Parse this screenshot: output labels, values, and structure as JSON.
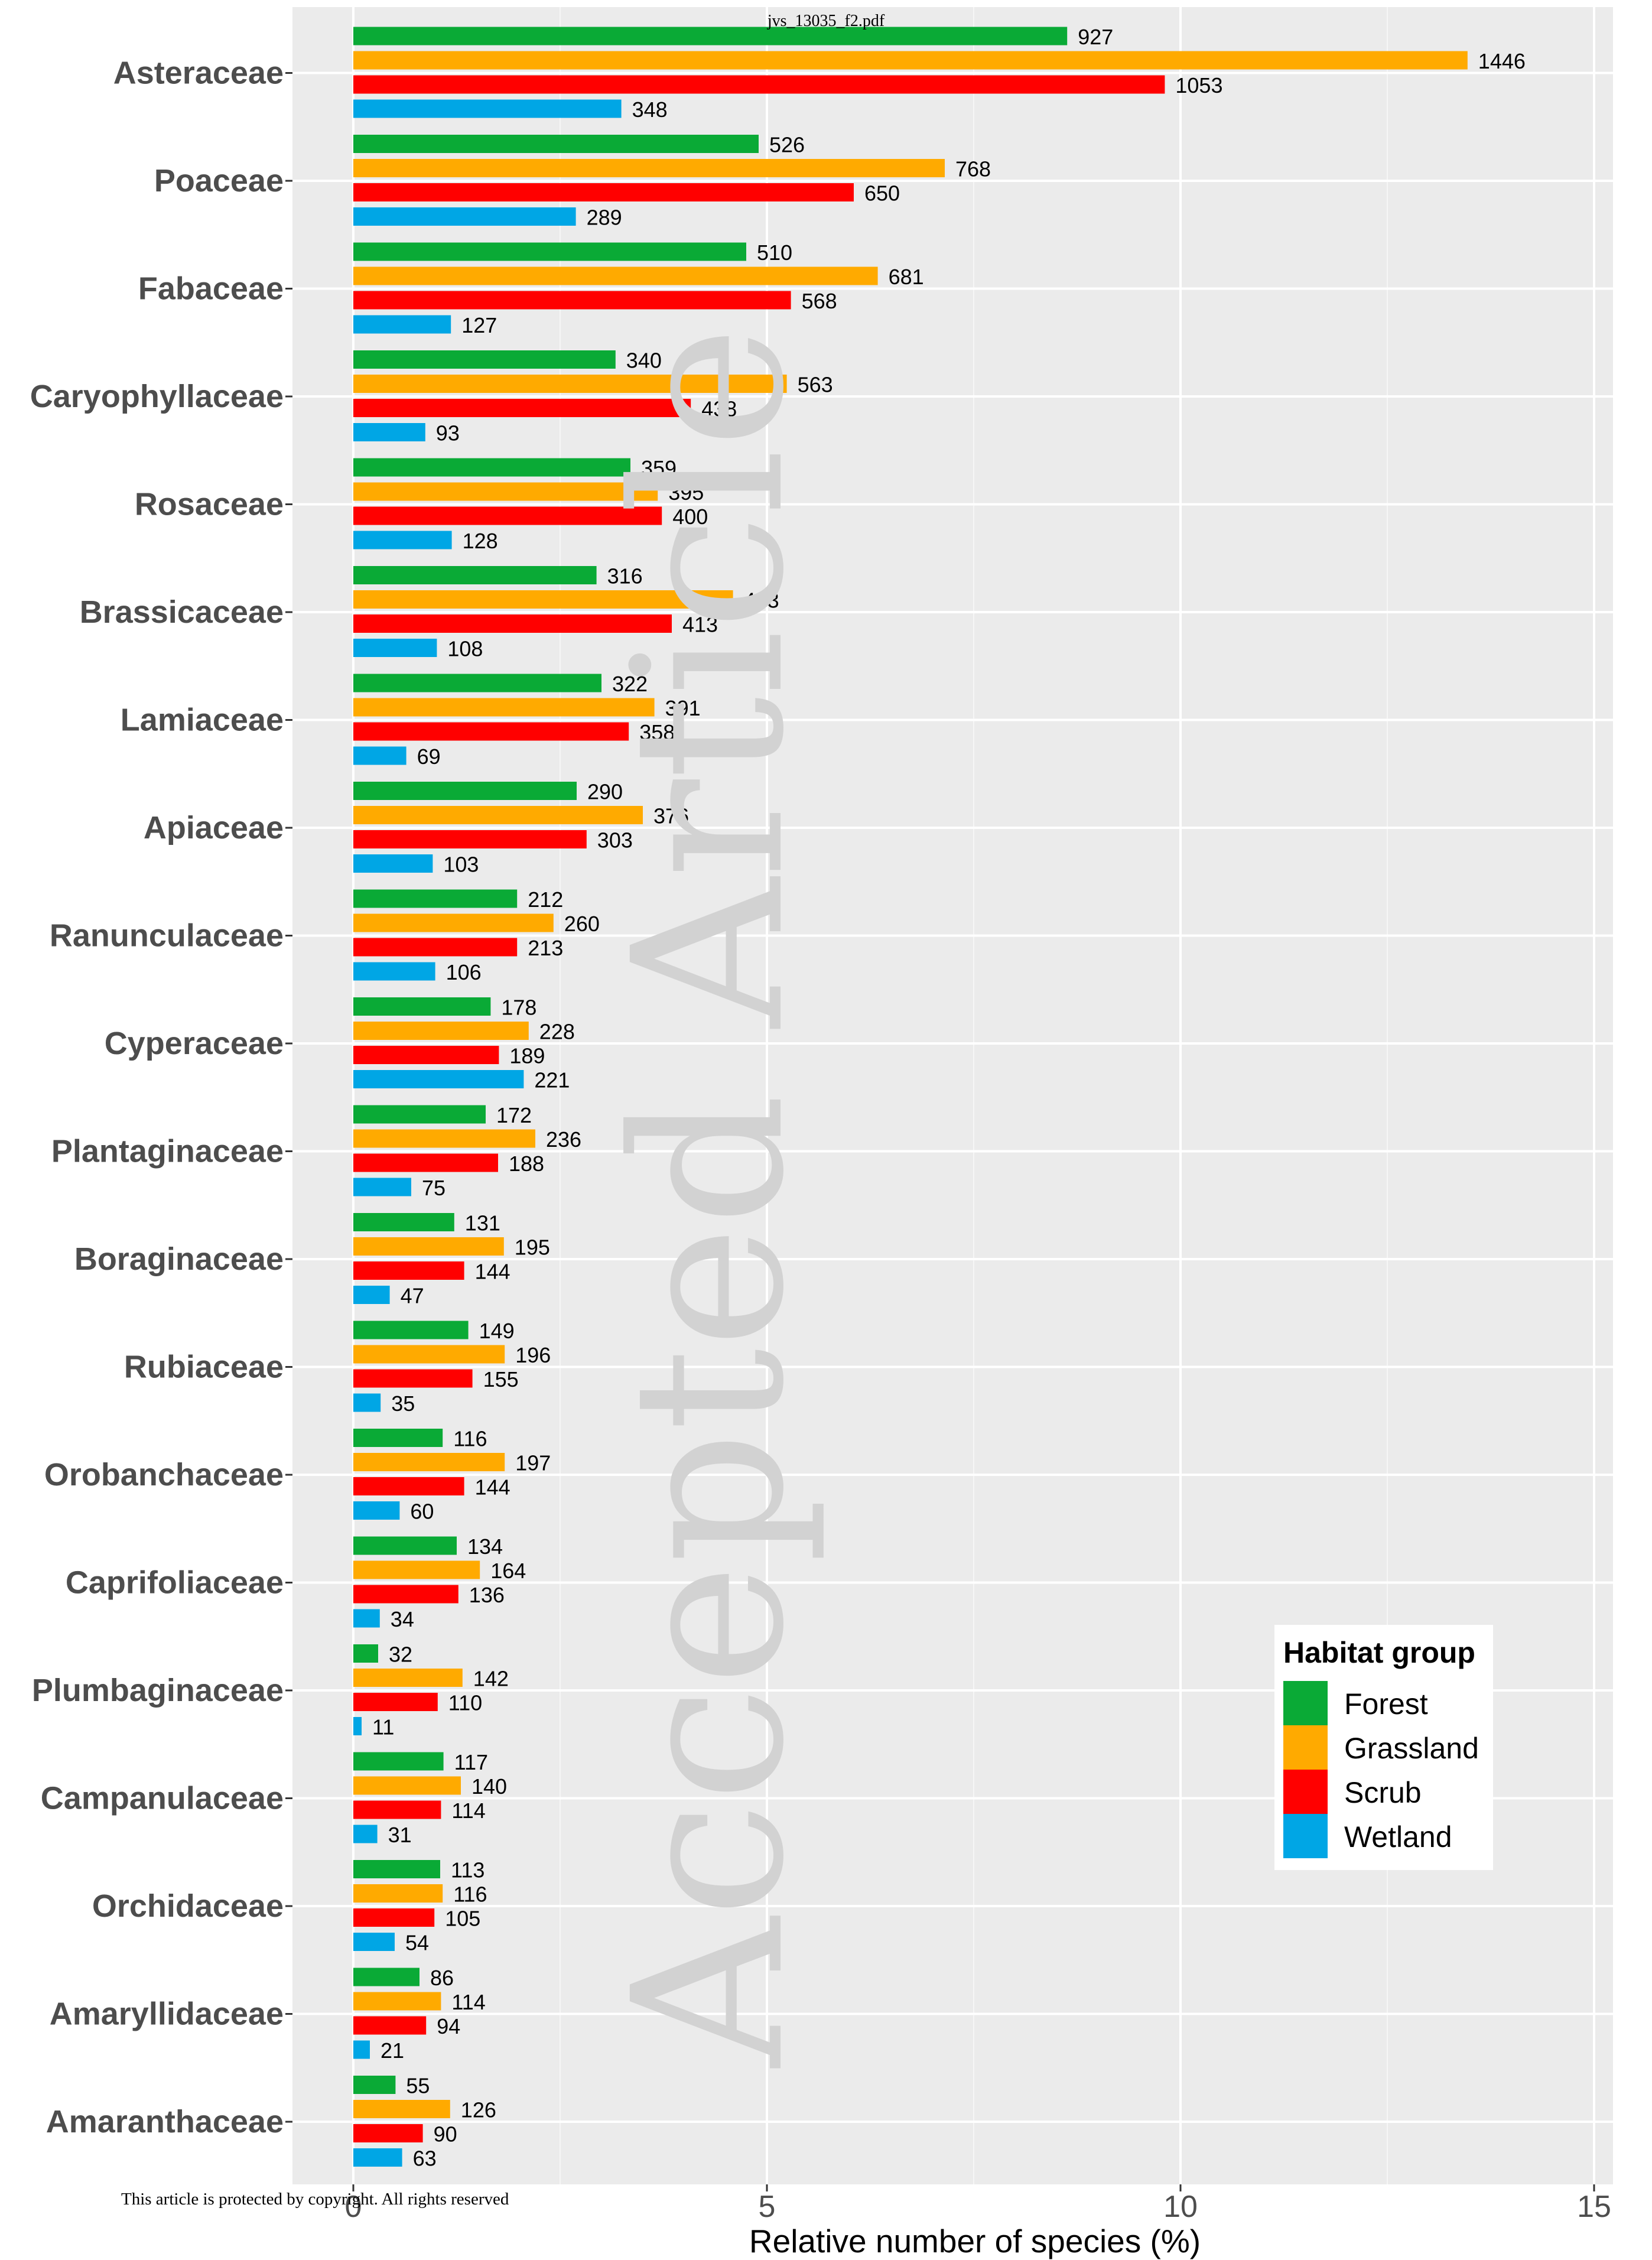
{
  "header": {
    "filename": "jvs_13035_f2.pdf"
  },
  "footer": {
    "notice": "This article is protected by copyright. All rights reserved"
  },
  "watermark": {
    "text": "Accepted Article"
  },
  "chart_data": {
    "type": "bar",
    "orientation": "horizontal",
    "xlabel": "Relative number of species (%)",
    "ylabel": "",
    "xlim": [
      0,
      15.5
    ],
    "xticks": [
      0,
      5,
      10,
      15
    ],
    "grid": true,
    "legend": {
      "title": "Habitat group",
      "placement": "right",
      "entries": [
        "Forest",
        "Grassland",
        "Scrub",
        "Wetland"
      ]
    },
    "colors": {
      "Forest": "#0aaa36",
      "Grassland": "#ffaa00",
      "Scrub": "#ff0000",
      "Wetland": "#00a6e5"
    },
    "categories": [
      "Asteraceae",
      "Poaceae",
      "Fabaceae",
      "Caryophyllaceae",
      "Rosaceae",
      "Brassicaceae",
      "Lamiaceae",
      "Apiaceae",
      "Ranunculaceae",
      "Cyperaceae",
      "Plantaginaceae",
      "Boraginaceae",
      "Rubiaceae",
      "Orobanchaceae",
      "Caprifoliaceae",
      "Plumbaginaceae",
      "Campanulaceae",
      "Orchidaceae",
      "Amaryllidaceae",
      "Amaranthaceae"
    ],
    "series": [
      {
        "name": "Forest",
        "values": [
          8.63,
          4.9,
          4.75,
          3.17,
          3.35,
          2.94,
          3.0,
          2.7,
          1.98,
          1.66,
          1.6,
          1.22,
          1.39,
          1.08,
          1.25,
          0.3,
          1.09,
          1.05,
          0.8,
          0.51
        ],
        "labels": [
          927,
          526,
          510,
          340,
          359,
          316,
          322,
          290,
          212,
          178,
          172,
          131,
          149,
          116,
          134,
          32,
          117,
          113,
          86,
          55
        ]
      },
      {
        "name": "Grassland",
        "values": [
          13.47,
          7.15,
          6.34,
          5.24,
          3.68,
          4.59,
          3.64,
          3.5,
          2.42,
          2.12,
          2.2,
          1.82,
          1.83,
          1.83,
          1.53,
          1.32,
          1.3,
          1.08,
          1.06,
          1.17
        ],
        "labels": [
          1446,
          768,
          681,
          563,
          395,
          493,
          391,
          376,
          260,
          228,
          236,
          195,
          196,
          197,
          164,
          142,
          140,
          116,
          114,
          126
        ]
      },
      {
        "name": "Scrub",
        "values": [
          9.81,
          6.05,
          5.29,
          4.08,
          3.73,
          3.85,
          3.33,
          2.82,
          1.98,
          1.76,
          1.75,
          1.34,
          1.44,
          1.34,
          1.27,
          1.02,
          1.06,
          0.98,
          0.88,
          0.84
        ],
        "labels": [
          1053,
          650,
          568,
          438,
          400,
          413,
          358,
          303,
          213,
          189,
          188,
          144,
          155,
          144,
          136,
          110,
          114,
          105,
          94,
          90
        ]
      },
      {
        "name": "Wetland",
        "values": [
          3.24,
          2.69,
          1.18,
          0.87,
          1.19,
          1.01,
          0.64,
          0.96,
          0.99,
          2.06,
          0.7,
          0.44,
          0.33,
          0.56,
          0.32,
          0.1,
          0.29,
          0.5,
          0.2,
          0.59
        ],
        "labels": [
          348,
          289,
          127,
          93,
          128,
          108,
          69,
          103,
          106,
          221,
          75,
          47,
          35,
          60,
          34,
          11,
          31,
          54,
          21,
          63
        ]
      }
    ]
  }
}
